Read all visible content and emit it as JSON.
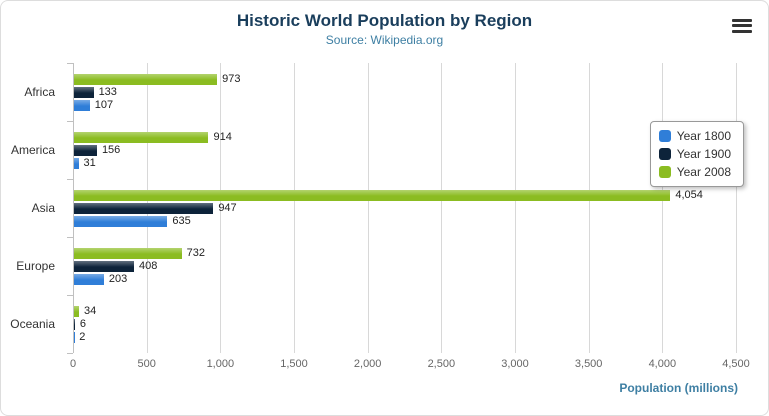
{
  "header": {
    "title": "Historic World Population by Region",
    "subtitle": "Source: Wikipedia.org"
  },
  "icons": {
    "menu": "hamburger-icon"
  },
  "chart_data": {
    "type": "bar",
    "orientation": "horizontal",
    "title": "Historic World Population by Region",
    "subtitle": "Source: Wikipedia.org",
    "categories": [
      "Africa",
      "America",
      "Asia",
      "Europe",
      "Oceania"
    ],
    "series": [
      {
        "name": "Year 1800",
        "color": "#2f7ed8",
        "values": [
          107,
          31,
          635,
          203,
          2
        ]
      },
      {
        "name": "Year 1900",
        "color": "#0d233a",
        "values": [
          133,
          156,
          947,
          408,
          6
        ]
      },
      {
        "name": "Year 2008",
        "color": "#8bbc21",
        "values": [
          973,
          914,
          4054,
          732,
          34
        ]
      }
    ],
    "series_display_order": "reversed",
    "xlabel": "Population (millions)",
    "ylabel": "",
    "xlim": [
      0,
      4500
    ],
    "tick_interval": 500,
    "tick_labels": [
      "0",
      "500",
      "1,000",
      "1,500",
      "2,000",
      "2,500",
      "3,000",
      "3,500",
      "4,000",
      "4,500"
    ],
    "grid": true,
    "legend_position": "right"
  }
}
